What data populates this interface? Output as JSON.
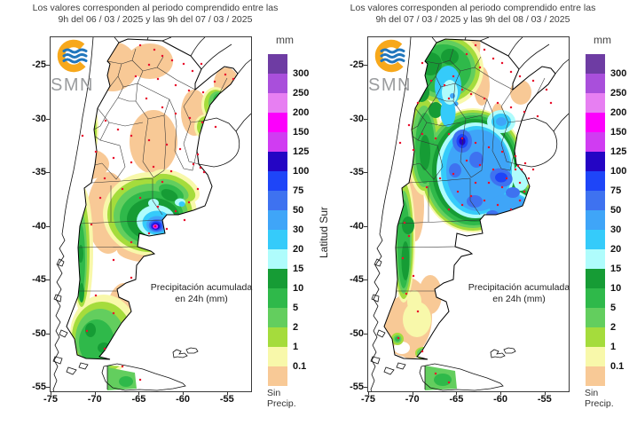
{
  "panels": [
    {
      "title_line1": "Los valores corresponden al periodo comprendido entre las",
      "title_line2": "9h del 06 / 03 / 2025  y las 9h del 07 / 03 / 2025",
      "logo_text": "SMN",
      "annotation_line1": "Precipitación acumulada",
      "annotation_line2": "en 24h (mm)"
    },
    {
      "title_line1": "Los valores corresponden al periodo comprendido entre las",
      "title_line2": "9h del 07 / 03 / 2025  y las 9h del 08 / 03 / 2025",
      "logo_text": "SMN",
      "annotation_line1": "Precipitación acumulada",
      "annotation_line2": "en 24h (mm)"
    }
  ],
  "axes": {
    "x_ticks": [
      "-75",
      "-70",
      "-65",
      "-60",
      "-55"
    ],
    "y_ticks": [
      "-25",
      "-30",
      "-35",
      "-40",
      "-45",
      "-50",
      "-55"
    ],
    "y_axis_label": "Latitud Sur"
  },
  "legend": {
    "unit": "mm",
    "labels": [
      "300",
      "250",
      "200",
      "150",
      "125",
      "100",
      "75",
      "50",
      "30",
      "20",
      "15",
      "10",
      "5",
      "2",
      "1",
      "0.1"
    ],
    "colors": [
      "#6E3CA3",
      "#A94FDB",
      "#E77FF2",
      "#FC00FC",
      "#D03CF2",
      "#2405C4",
      "#1E45F8",
      "#3E72F0",
      "#3FA5F8",
      "#35CBFA",
      "#AFFCFC",
      "#169C35",
      "#2FB94A",
      "#63CE5E",
      "#A5DC3C",
      "#F8F8AA",
      "#F8C996"
    ],
    "no_precip_line1": "Sin",
    "no_precip_line2": "Precip."
  },
  "logo": {
    "ring_color": "#F7A81B",
    "wave_color": "#2176BC",
    "text_color": "#9A9C9E"
  },
  "station_dot_color": "#E8112D"
}
